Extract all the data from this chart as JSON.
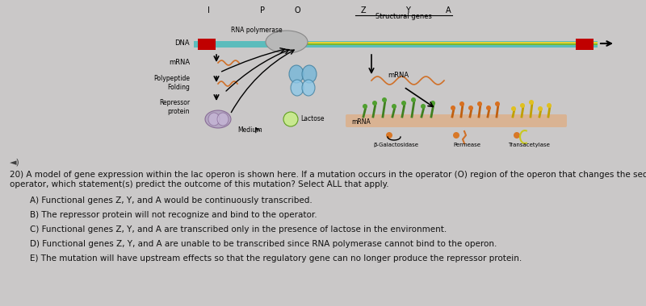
{
  "background_color": "#cac8c8",
  "question_number": "20)",
  "question_text": "A model of gene expression within the lac operon is shown here. If a mutation occurs in the operator (O) region of the operon that changes the sequence of nucleotides in the",
  "question_text2": "operator, which statement(s) predict the outcome of this mutation? Select ALL that apply.",
  "answers": [
    "A) Functional genes Z, Y, and A would be continuously transcribed.",
    "B) The repressor protein will not recognize and bind to the operator.",
    "C) Functional genes Z, Y, and A are transcribed only in the presence of lactose in the environment.",
    "D) Functional genes Z, Y, and A are unable to be transcribed since RNA polymerase cannot bind to the operon.",
    "E) The mutation will have upstream effects so that the regulatory gene can no longer produce the repressor protein."
  ],
  "font_size_question": 7.5,
  "font_size_answers": 7.5,
  "text_color": "#111111",
  "diagram_labels_top": [
    "I",
    "P",
    "O",
    "Z",
    "Y",
    "A"
  ],
  "structural_genes_label": "Structural genes",
  "label_rna_pol": "RNA polymerase",
  "label_dna": "DNA",
  "label_mrna_left": "mRNA",
  "label_polypeptide": "Polypeptide\nFolding",
  "label_repressor": "Repressor\nprotein",
  "label_lactose": "Lactose",
  "label_medium": "Medium",
  "label_mrna_right": "mRNA",
  "label_mrna_bottom": "mRNA",
  "label_beta_gal": "β-Galactosidase",
  "label_permease": "Permease",
  "label_transacetylase": "Transacetylase"
}
